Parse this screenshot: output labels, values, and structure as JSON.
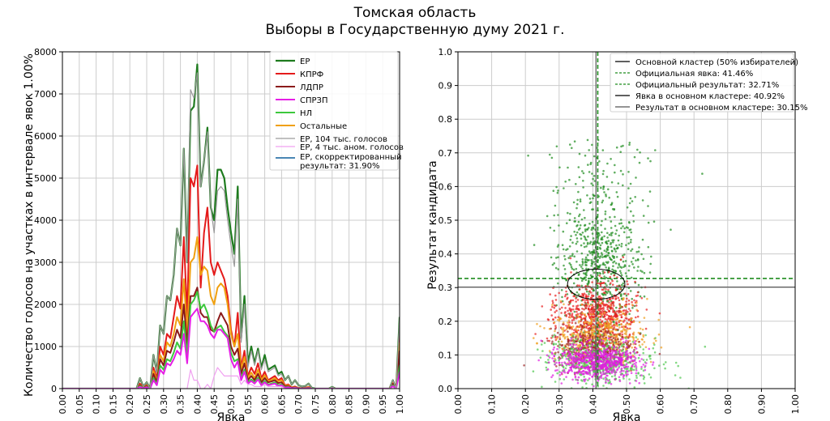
{
  "title": {
    "line1": "Томская область",
    "line2": "Выборы в Государственную думу 2021 г."
  },
  "chart_data": [
    {
      "type": "line",
      "xlabel": "Явка",
      "ylabel": "Количество голосов на участках в интервале явок 1.00%",
      "xlim": [
        0,
        1
      ],
      "ylim": [
        0,
        8000
      ],
      "grid": true,
      "legend_position": "top-right",
      "xticks": [
        "0.00",
        "0.05",
        "0.10",
        "0.15",
        "0.20",
        "0.25",
        "0.30",
        "0.35",
        "0.40",
        "0.45",
        "0.50",
        "0.55",
        "0.60",
        "0.65",
        "0.70",
        "0.75",
        "0.80",
        "0.85",
        "0.90",
        "0.95",
        "1.00"
      ],
      "yticks": [
        "0",
        "1000",
        "2000",
        "3000",
        "4000",
        "5000",
        "6000",
        "7000",
        "8000"
      ],
      "x": [
        0.22,
        0.23,
        0.24,
        0.25,
        0.26,
        0.27,
        0.28,
        0.29,
        0.3,
        0.31,
        0.32,
        0.33,
        0.34,
        0.35,
        0.36,
        0.37,
        0.38,
        0.39,
        0.4,
        0.41,
        0.42,
        0.43,
        0.44,
        0.45,
        0.46,
        0.47,
        0.48,
        0.49,
        0.5,
        0.51,
        0.52,
        0.53,
        0.54,
        0.55,
        0.56,
        0.57,
        0.58,
        0.59,
        0.6,
        0.61,
        0.62,
        0.63,
        0.64,
        0.65,
        0.66,
        0.67,
        0.68,
        0.69,
        0.7,
        0.71,
        0.72,
        0.73,
        0.74,
        0.75,
        0.76,
        0.77,
        0.78,
        0.79,
        0.8,
        0.81,
        0.82,
        0.83,
        0.84,
        0.85,
        0.86,
        0.95,
        0.96,
        0.97,
        0.98,
        0.99,
        1.0
      ],
      "series": [
        {
          "name": "ЕР",
          "color": "#1e7b1e",
          "width": 2.2,
          "values": [
            0,
            250,
            50,
            150,
            0,
            800,
            400,
            1500,
            1300,
            2200,
            2100,
            2700,
            3800,
            3400,
            5700,
            3000,
            6600,
            6700,
            7700,
            4800,
            5400,
            6200,
            4300,
            4000,
            5200,
            5200,
            5000,
            4300,
            3700,
            3200,
            4800,
            1200,
            2200,
            600,
            1000,
            600,
            950,
            500,
            800,
            450,
            500,
            550,
            350,
            400,
            200,
            300,
            100,
            200,
            80,
            50,
            60,
            120,
            20,
            0,
            0,
            0,
            0,
            0,
            40,
            0,
            0,
            0,
            0,
            0,
            0,
            0,
            0,
            0,
            200,
            0,
            1700
          ]
        },
        {
          "name": "КПРФ",
          "color": "#e41a1a",
          "width": 2.0,
          "values": [
            0,
            120,
            30,
            80,
            0,
            500,
            250,
            1000,
            800,
            1300,
            1200,
            1700,
            2200,
            1900,
            3600,
            1700,
            5000,
            4800,
            5300,
            2400,
            3700,
            4300,
            3000,
            2700,
            3000,
            2800,
            2600,
            2200,
            1400,
            1000,
            1800,
            500,
            900,
            300,
            500,
            350,
            600,
            250,
            400,
            200,
            250,
            300,
            200,
            250,
            80,
            100,
            30,
            50,
            20,
            10,
            20,
            40,
            0,
            0,
            0,
            0,
            0,
            0,
            10,
            0,
            0,
            0,
            0,
            0,
            0,
            0,
            0,
            0,
            150,
            0,
            1300
          ]
        },
        {
          "name": "ЛДПР",
          "color": "#8b1a1a",
          "width": 2.0,
          "values": [
            0,
            80,
            20,
            60,
            0,
            350,
            150,
            700,
            550,
            900,
            850,
            1100,
            1400,
            1200,
            2000,
            1050,
            2200,
            2200,
            2400,
            1800,
            1700,
            1700,
            1400,
            1350,
            1600,
            1800,
            1650,
            1500,
            1000,
            800,
            950,
            350,
            600,
            200,
            300,
            200,
            350,
            150,
            250,
            150,
            170,
            200,
            130,
            150,
            50,
            60,
            20,
            30,
            10,
            5,
            10,
            20,
            0,
            0,
            0,
            0,
            0,
            0,
            5,
            0,
            0,
            0,
            0,
            0,
            0,
            0,
            0,
            0,
            120,
            0,
            900
          ]
        },
        {
          "name": "СПРЗП",
          "color": "#e61ee6",
          "width": 2.0,
          "values": [
            0,
            40,
            10,
            30,
            0,
            200,
            80,
            450,
            350,
            600,
            550,
            700,
            900,
            800,
            1300,
            600,
            1700,
            1800,
            1900,
            1600,
            1600,
            1500,
            1300,
            1200,
            1400,
            1400,
            1300,
            1200,
            700,
            500,
            650,
            200,
            400,
            120,
            180,
            120,
            220,
            80,
            150,
            80,
            100,
            120,
            60,
            80,
            20,
            30,
            10,
            15,
            5,
            2,
            5,
            10,
            0,
            0,
            0,
            0,
            0,
            0,
            2,
            0,
            0,
            0,
            0,
            0,
            0,
            0,
            0,
            0,
            60,
            0,
            400
          ]
        },
        {
          "name": "НЛ",
          "color": "#3cc83c",
          "width": 2.0,
          "values": [
            0,
            60,
            15,
            40,
            0,
            250,
            100,
            550,
            450,
            700,
            650,
            850,
            1100,
            950,
            1600,
            800,
            2000,
            2100,
            2300,
            1900,
            2000,
            1800,
            1500,
            1350,
            1450,
            1500,
            1350,
            1250,
            850,
            650,
            700,
            250,
            450,
            150,
            220,
            150,
            260,
            100,
            180,
            100,
            120,
            150,
            80,
            100,
            30,
            40,
            10,
            20,
            8,
            3,
            8,
            15,
            0,
            0,
            0,
            0,
            0,
            0,
            3,
            0,
            0,
            0,
            0,
            0,
            0,
            0,
            0,
            0,
            80,
            0,
            550
          ]
        },
        {
          "name": "Остальные",
          "color": "#f0a010",
          "width": 2.0,
          "values": [
            0,
            90,
            25,
            70,
            0,
            420,
            180,
            800,
            650,
            1100,
            1000,
            1300,
            1700,
            1500,
            2600,
            1300,
            3000,
            3100,
            3600,
            2700,
            2900,
            2800,
            2200,
            2000,
            2400,
            2500,
            2400,
            2000,
            1300,
            1000,
            1300,
            450,
            750,
            250,
            380,
            250,
            450,
            200,
            320,
            180,
            200,
            250,
            170,
            200,
            60,
            80,
            25,
            40,
            15,
            8,
            15,
            30,
            0,
            0,
            0,
            0,
            0,
            0,
            8,
            0,
            0,
            0,
            0,
            0,
            0,
            0,
            0,
            0,
            130,
            0,
            1100
          ]
        },
        {
          "name": "ЕР, 104 тыс. голосов",
          "color": "#9a9a9a",
          "width": 1.2,
          "values": [
            0,
            250,
            50,
            150,
            0,
            800,
            400,
            1500,
            1300,
            2200,
            2100,
            2700,
            3800,
            3400,
            5700,
            3000,
            7100,
            6900,
            7500,
            4800,
            5400,
            6100,
            4300,
            3700,
            4700,
            4800,
            4700,
            4000,
            3400,
            2900,
            4500,
            1100,
            2000,
            500,
            900,
            550,
            900,
            450,
            700,
            400,
            450,
            500,
            300,
            350,
            200,
            300,
            100,
            200,
            80,
            50,
            60,
            120,
            20,
            0,
            0,
            0,
            0,
            0,
            40,
            0,
            0,
            0,
            0,
            0,
            0,
            0,
            0,
            0,
            200,
            0,
            1700
          ]
        },
        {
          "name": "ЕР, 4 тыс. аном. голосов",
          "color": "#f0a0f0",
          "width": 1.2,
          "values": [
            0,
            0,
            0,
            0,
            0,
            0,
            0,
            0,
            0,
            0,
            0,
            0,
            0,
            0,
            0,
            0,
            450,
            200,
            200,
            0,
            0,
            100,
            0,
            300,
            500,
            400,
            300,
            300,
            300,
            300,
            300,
            100,
            200,
            100,
            100,
            50,
            50,
            50,
            100,
            50,
            50,
            50,
            50,
            50,
            0,
            0,
            0,
            0,
            0,
            0,
            0,
            0,
            0,
            0,
            0,
            0,
            0,
            0,
            0,
            0,
            0,
            0,
            0,
            0,
            0,
            0,
            0,
            0,
            0,
            0,
            0
          ]
        },
        {
          "name": "ЕР, скорректированный результат: 31.90%",
          "color": "#4a86b4",
          "width": 1.5,
          "values": [
            0,
            0,
            0,
            0,
            0,
            0,
            0,
            0,
            0,
            0,
            0,
            0,
            0,
            0,
            0,
            0,
            0,
            0,
            0,
            0,
            0,
            0,
            0,
            0,
            0,
            0,
            0,
            0,
            0,
            0,
            0,
            0,
            0,
            0,
            0,
            0,
            0,
            0,
            0,
            0,
            0,
            0,
            0,
            0,
            0,
            0,
            0,
            0,
            0,
            0,
            0,
            0,
            0,
            0,
            0,
            0,
            0,
            0,
            0,
            0,
            0,
            0,
            0,
            0,
            0,
            0,
            0,
            0,
            0,
            0,
            0
          ]
        }
      ],
      "legend": [
        "ЕР",
        "КПРФ",
        "ЛДПР",
        "СПРЗП",
        "НЛ",
        "Остальные",
        "ЕР, 104 тыс. голосов",
        "ЕР, 4 тыс. аном. голосов",
        "ЕР, скорректированный",
        "результат: 31.90%"
      ]
    },
    {
      "type": "scatter",
      "xlabel": "Явка",
      "ylabel": "Результат кандидата",
      "xlim": [
        0,
        1
      ],
      "ylim": [
        0,
        1
      ],
      "grid": true,
      "legend_position": "top-right",
      "xticks": [
        "0.00",
        "0.10",
        "0.20",
        "0.30",
        "0.40",
        "0.50",
        "0.60",
        "0.70",
        "0.80",
        "0.90",
        "1.00"
      ],
      "yticks": [
        "0.0",
        "0.1",
        "0.2",
        "0.3",
        "0.4",
        "0.5",
        "0.6",
        "0.7",
        "0.8",
        "0.9",
        "1.0"
      ],
      "series": [
        {
          "name": "ЕР",
          "color": "#1e8c1e",
          "center": [
            0.42,
            0.36
          ],
          "spread": [
            0.06,
            0.09
          ],
          "count": 700
        },
        {
          "name": "КПРФ",
          "color": "#e82020",
          "center": [
            0.41,
            0.22
          ],
          "spread": [
            0.06,
            0.05
          ],
          "count": 650
        },
        {
          "name": "Остальные",
          "color": "#f0a020",
          "center": [
            0.42,
            0.15
          ],
          "spread": [
            0.07,
            0.04
          ],
          "count": 500
        },
        {
          "name": "ЛДПР",
          "color": "#a0282a",
          "center": [
            0.4,
            0.12
          ],
          "spread": [
            0.06,
            0.03
          ],
          "count": 350
        },
        {
          "name": "НЛ",
          "color": "#50c850",
          "center": [
            0.43,
            0.08
          ],
          "spread": [
            0.08,
            0.035
          ],
          "count": 450
        },
        {
          "name": "СПРЗП",
          "color": "#e020e0",
          "center": [
            0.41,
            0.08
          ],
          "spread": [
            0.06,
            0.025
          ],
          "count": 650
        }
      ],
      "lines": {
        "official_turnout": 0.4146,
        "official_result": 0.3271,
        "cluster_turnout": 0.4092,
        "cluster_result": 0.3015,
        "cluster_ellipse": {
          "center": [
            0.41,
            0.31
          ],
          "radii": [
            0.085,
            0.045
          ]
        }
      },
      "legend": [
        {
          "label": "Основной кластер (50% избирателей)",
          "color": "#000000",
          "dash": false
        },
        {
          "label": "Официальная явка: 41.46%",
          "color": "#1e8c1e",
          "dash": true
        },
        {
          "label": "Официальный результат: 32.71%",
          "color": "#1e8c1e",
          "dash": true
        },
        {
          "label": "Явка в основном кластере: 40.92%",
          "color": "#000000",
          "dash": false
        },
        {
          "label": "Результат в основном кластере: 30.15%",
          "color": "#555555",
          "dash": false
        }
      ]
    }
  ]
}
